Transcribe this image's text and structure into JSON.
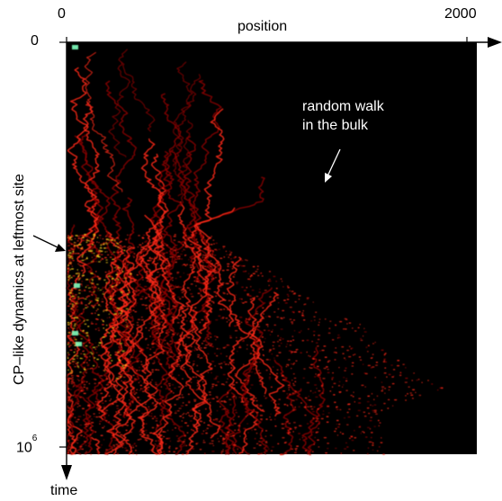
{
  "axes": {
    "x_title": "position",
    "x_tick_start": "0",
    "x_tick_end": "2000",
    "y_title": "time",
    "y_tick_start": "0",
    "y_tick_end_base": "10",
    "y_tick_end_exp": "6"
  },
  "annotations": {
    "bulk_line1": "random walk",
    "bulk_line2": "in the bulk",
    "left_site": "CP–like dynamics at leftmost site"
  },
  "colors": {
    "background": "#000000",
    "activity_low": "#8b0000",
    "activity_mid": "#ff2a1a",
    "activity_high": "#ffd21f",
    "activity_peak": "#7fffbf"
  }
}
